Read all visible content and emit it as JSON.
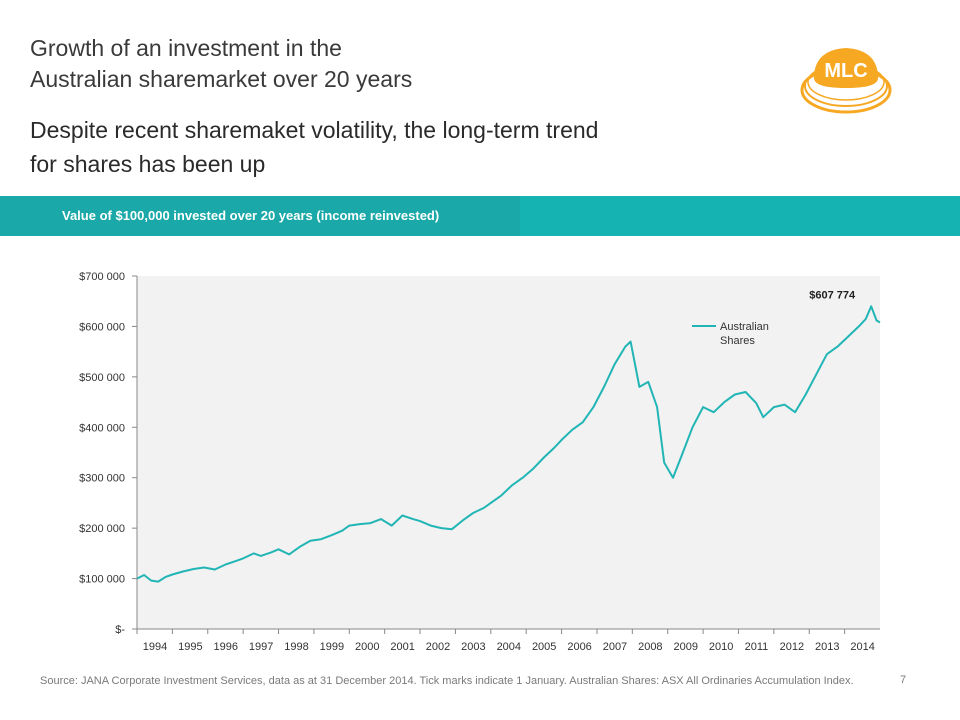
{
  "header": {
    "title_lines": [
      "Growth of an investment in the",
      "Australian sharemarket over 20 years"
    ],
    "subtitle_lines": [
      "Despite recent sharemaket volatility, the long-term trend",
      "for shares has been up"
    ],
    "logo_text": "MLC"
  },
  "band": {
    "label": "Value of $100,000 invested over 20 years (income reinvested)"
  },
  "colors": {
    "teal": "#16b3b3",
    "teal_dark": "#1aa8a8",
    "line": "#22b5b5",
    "logo_orange": "#f7a823"
  },
  "chart_data": {
    "type": "line",
    "title": "Value of $100,000 invested over 20 years (income reinvested)",
    "xlabel": "",
    "ylabel": "",
    "xlim": [
      1994,
      2015
    ],
    "ylim": [
      0,
      700000
    ],
    "y_ticks": [
      0,
      100000,
      200000,
      300000,
      400000,
      500000,
      600000,
      700000
    ],
    "y_tick_labels": [
      "$-",
      "$100 000",
      "$200 000",
      "$300 000",
      "$400 000",
      "$500 000",
      "$600 000",
      "$700 000"
    ],
    "x_ticks": [
      1994,
      1995,
      1996,
      1997,
      1998,
      1999,
      2000,
      2001,
      2002,
      2003,
      2004,
      2005,
      2006,
      2007,
      2008,
      2009,
      2010,
      2011,
      2012,
      2013,
      2014
    ],
    "x_tick_labels": [
      "1994",
      "1995",
      "1996",
      "1997",
      "1998",
      "1999",
      "2000",
      "2001",
      "2002",
      "2003",
      "2004",
      "2005",
      "2006",
      "2007",
      "2008",
      "2009",
      "2010",
      "2011",
      "2012",
      "2013",
      "2014"
    ],
    "grid": false,
    "legend": "top-right",
    "end_label": "$607 774",
    "series": [
      {
        "name": "Australian Shares",
        "x": [
          1994.0,
          1994.2,
          1994.4,
          1994.6,
          1994.8,
          1995.0,
          1995.3,
          1995.6,
          1995.9,
          1996.2,
          1996.5,
          1996.8,
          1997.0,
          1997.3,
          1997.5,
          1997.8,
          1998.0,
          1998.3,
          1998.6,
          1998.9,
          1999.2,
          1999.5,
          1999.8,
          2000.0,
          2000.3,
          2000.6,
          2000.9,
          2001.2,
          2001.5,
          2001.8,
          2002.0,
          2002.3,
          2002.6,
          2002.9,
          2003.2,
          2003.5,
          2003.8,
          2004.0,
          2004.3,
          2004.6,
          2004.9,
          2005.2,
          2005.5,
          2005.8,
          2006.0,
          2006.3,
          2006.6,
          2006.9,
          2007.2,
          2007.5,
          2007.8,
          2007.95,
          2008.2,
          2008.45,
          2008.7,
          2008.9,
          2009.15,
          2009.4,
          2009.7,
          2010.0,
          2010.3,
          2010.6,
          2010.9,
          2011.2,
          2011.5,
          2011.7,
          2012.0,
          2012.3,
          2012.6,
          2012.9,
          2013.2,
          2013.5,
          2013.8,
          2014.1,
          2014.4,
          2014.6,
          2014.75,
          2014.9,
          2015.0
        ],
        "values": [
          100000,
          107000,
          96000,
          94000,
          103000,
          108000,
          114000,
          119000,
          122000,
          118000,
          128000,
          135000,
          140000,
          150000,
          145000,
          152000,
          158000,
          148000,
          163000,
          175000,
          178000,
          186000,
          195000,
          205000,
          208000,
          210000,
          218000,
          205000,
          225000,
          218000,
          214000,
          205000,
          200000,
          198000,
          215000,
          230000,
          240000,
          250000,
          265000,
          285000,
          300000,
          318000,
          340000,
          360000,
          375000,
          395000,
          410000,
          440000,
          480000,
          525000,
          560000,
          570000,
          480000,
          490000,
          440000,
          330000,
          300000,
          345000,
          400000,
          440000,
          430000,
          450000,
          465000,
          470000,
          448000,
          420000,
          440000,
          445000,
          430000,
          465000,
          505000,
          545000,
          560000,
          580000,
          600000,
          615000,
          640000,
          612000,
          607774
        ]
      }
    ]
  },
  "footer": {
    "source": "Source: JANA Corporate Investment Services, data as at  31 December 2014. Tick marks indicate 1 January.  Australian Shares: ASX All Ordinaries Accumulation Index.",
    "page_number": "7"
  }
}
